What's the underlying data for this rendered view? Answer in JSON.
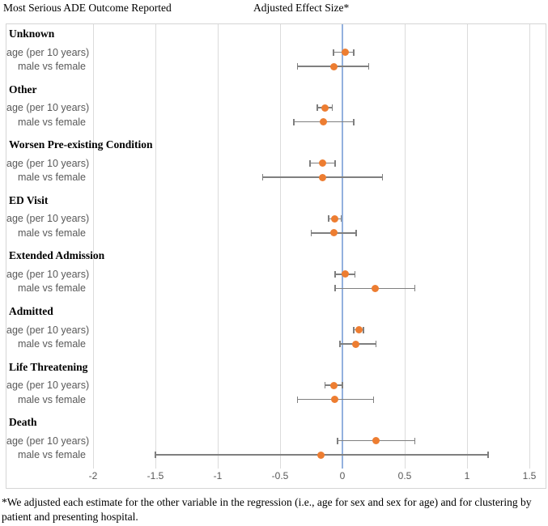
{
  "header": {
    "left_title": "Most Serious ADE Outcome Reported",
    "right_title": "Adjusted Effect Size*"
  },
  "footnote": {
    "text": "*We adjusted each estimate for the other variable in the regression (i.e., age for sex and sex for age) and for clustering by patient and presenting hospital."
  },
  "chart_data": {
    "type": "scatter",
    "variant": "forest-plot",
    "title": "Adjusted Effect Size*",
    "xlabel": "",
    "ylabel": "Most Serious ADE Outcome Reported",
    "zero_reference_line": 0,
    "grid": "vertical",
    "x_axis": {
      "ticks": [
        {
          "value": -2,
          "label": "-2"
        },
        {
          "value": -1.5,
          "label": "-1.5"
        },
        {
          "value": -1,
          "label": "-1"
        },
        {
          "value": -0.5,
          "label": "-0.5"
        },
        {
          "value": 0,
          "label": "0"
        },
        {
          "value": 0.5,
          "label": "0.5"
        },
        {
          "value": 1,
          "label": "1"
        },
        {
          "value": 1.5,
          "label": "1.5"
        }
      ]
    },
    "colors": {
      "point": "#ED7D31",
      "error_bar": "#7f7f7f",
      "zero_line": "#93b1de",
      "gridline": "#dbdbdb"
    },
    "groups": [
      {
        "label": "Unknown",
        "rows": [
          {
            "label": "age (per 10 years)",
            "value": 0.02,
            "ci_low": -0.07,
            "ci_high": 0.09
          },
          {
            "label": "male vs female",
            "value": -0.07,
            "ci_low": -0.36,
            "ci_high": 0.21
          }
        ]
      },
      {
        "label": "Other",
        "rows": [
          {
            "label": "age (per 10 years)",
            "value": -0.14,
            "ci_low": -0.2,
            "ci_high": -0.08
          },
          {
            "label": "male vs female",
            "value": -0.15,
            "ci_low": -0.39,
            "ci_high": 0.09
          }
        ]
      },
      {
        "label": "Worsen Pre-existing Condition",
        "rows": [
          {
            "label": "age (per 10 years)",
            "value": -0.16,
            "ci_low": -0.26,
            "ci_high": -0.06
          },
          {
            "label": "male vs female",
            "value": -0.16,
            "ci_low": -0.64,
            "ci_high": 0.32
          }
        ]
      },
      {
        "label": "ED Visit",
        "rows": [
          {
            "label": "age (per 10 years)",
            "value": -0.06,
            "ci_low": -0.11,
            "ci_high": -0.01
          },
          {
            "label": "male vs female",
            "value": -0.07,
            "ci_low": -0.25,
            "ci_high": 0.11
          }
        ]
      },
      {
        "label": "Extended Admission",
        "rows": [
          {
            "label": "age (per 10 years)",
            "value": 0.02,
            "ci_low": -0.06,
            "ci_high": 0.1
          },
          {
            "label": "male vs female",
            "value": 0.26,
            "ci_low": -0.06,
            "ci_high": 0.58
          }
        ]
      },
      {
        "label": "Admitted",
        "rows": [
          {
            "label": "age (per 10 years)",
            "value": 0.13,
            "ci_low": 0.09,
            "ci_high": 0.17
          },
          {
            "label": "male vs female",
            "value": 0.11,
            "ci_low": -0.02,
            "ci_high": 0.27
          }
        ]
      },
      {
        "label": "Life Threatening",
        "rows": [
          {
            "label": "age (per 10 years)",
            "value": -0.07,
            "ci_low": -0.14,
            "ci_high": 0.0
          },
          {
            "label": "male vs female",
            "value": -0.06,
            "ci_low": -0.36,
            "ci_high": 0.25
          }
        ]
      },
      {
        "label": "Death",
        "rows": [
          {
            "label": "age (per 10 years)",
            "value": 0.27,
            "ci_low": -0.04,
            "ci_high": 0.58
          },
          {
            "label": "male vs female",
            "value": -0.17,
            "ci_low": -1.5,
            "ci_high": 1.17
          }
        ]
      }
    ]
  }
}
